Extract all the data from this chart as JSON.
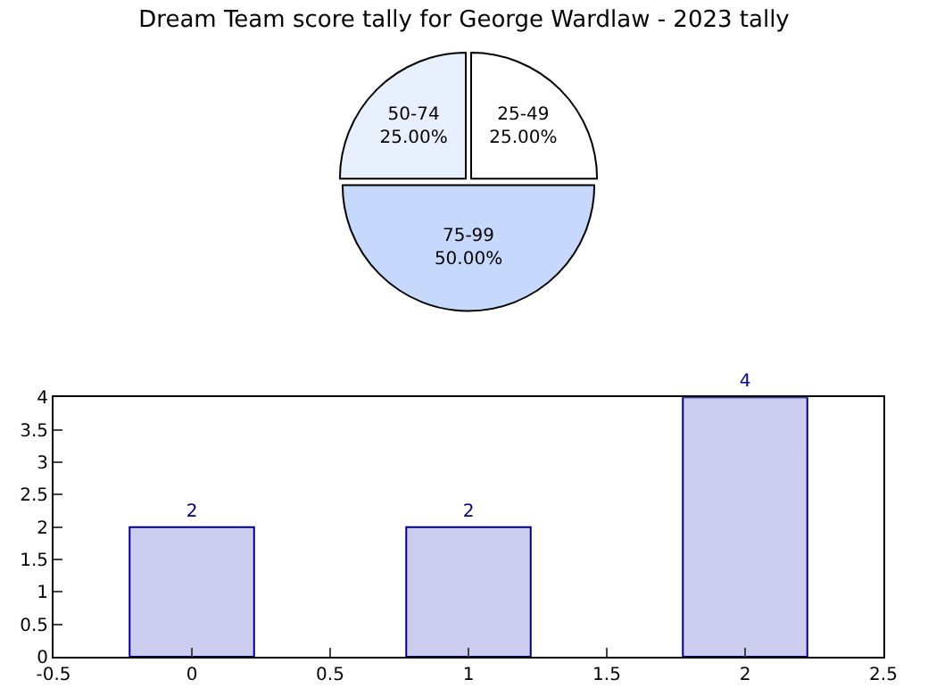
{
  "chart_data": [
    {
      "type": "pie",
      "title": "Dream Team score tally for George Wardlaw - 2023 tally",
      "categories": [
        "25-49",
        "50-74",
        "75-99"
      ],
      "values": [
        25,
        25,
        50
      ],
      "value_labels": [
        "25.00%",
        "25.00%",
        "50.00%"
      ],
      "colors": [
        "#ffffff",
        "#e8f0fe",
        "#c6d9fd"
      ]
    },
    {
      "type": "bar",
      "x": [
        0,
        1,
        2
      ],
      "values": [
        2,
        2,
        4
      ],
      "color": "#ccccee",
      "data_labels": true,
      "xlim": [
        -0.5,
        2.5
      ],
      "xticks": [
        -0.5,
        0.0,
        0.5,
        1.0,
        1.5,
        2.0,
        2.5
      ],
      "ylim": [
        0,
        4
      ],
      "yticks": [
        0.0,
        0.5,
        1.0,
        1.5,
        2.0,
        2.5,
        3.0,
        3.5,
        4.0
      ],
      "grid": false
    }
  ]
}
